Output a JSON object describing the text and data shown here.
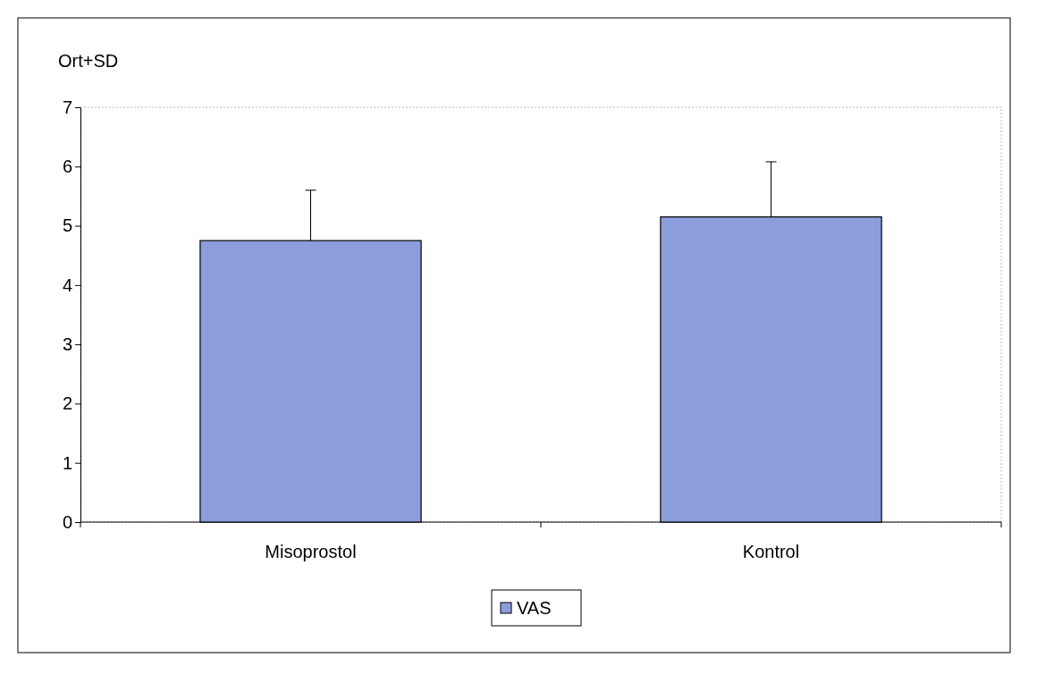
{
  "chart_data": {
    "type": "bar",
    "ylabel": "Ort+SD",
    "categories": [
      "Misoprostol",
      "Kontrol"
    ],
    "series": [
      {
        "name": "VAS",
        "color": "#8c9ddb",
        "values": [
          4.75,
          5.15
        ],
        "errors": [
          0.85,
          0.93
        ]
      }
    ],
    "ylim": [
      0,
      7
    ],
    "yticks": [
      0,
      1,
      2,
      3,
      4,
      5,
      6,
      7
    ],
    "grid": false,
    "legend": "bottom"
  }
}
